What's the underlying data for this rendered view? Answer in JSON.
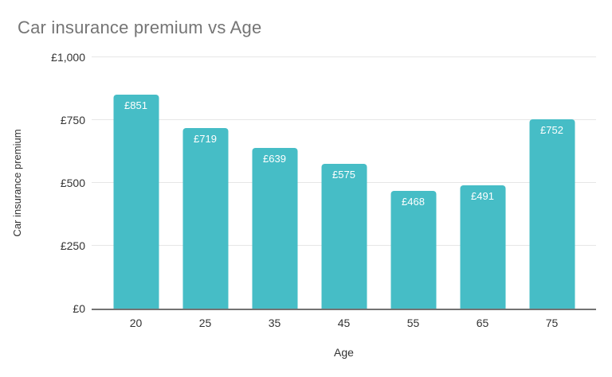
{
  "chart_data": {
    "type": "bar",
    "title": "Car insurance premium vs Age",
    "xlabel": "Age",
    "ylabel": "Car insurance premium",
    "categories": [
      "20",
      "25",
      "35",
      "45",
      "55",
      "65",
      "75"
    ],
    "values": [
      851,
      719,
      639,
      575,
      468,
      491,
      752
    ],
    "value_labels": [
      "£851",
      "£719",
      "£639",
      "£575",
      "£468",
      "£491",
      "£752"
    ],
    "ylim": [
      0,
      1000
    ],
    "yticks": [
      {
        "value": 0,
        "label": "£0"
      },
      {
        "value": 250,
        "label": "£250"
      },
      {
        "value": 500,
        "label": "£500"
      },
      {
        "value": 750,
        "label": "£750"
      },
      {
        "value": 1000,
        "label": "£1,000"
      }
    ],
    "grid": true,
    "legend": "none",
    "colors": {
      "bar": "#46bdc6",
      "value_label": "#ffffff",
      "grid": "#e6e6e6",
      "baseline": "#737373",
      "title": "#757575",
      "tick": "#333333"
    }
  }
}
